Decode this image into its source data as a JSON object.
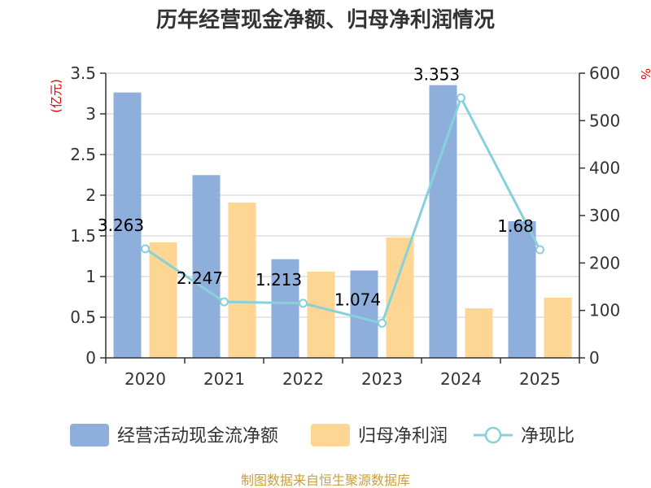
{
  "chart_data": {
    "type": "bar",
    "title": "历年经营现金净额、归母净利润情况",
    "categories": [
      "2020",
      "2021",
      "2022",
      "2023",
      "2024",
      "2025"
    ],
    "series": [
      {
        "name": "经营活动现金流净额",
        "type": "bar",
        "axis": "left",
        "color": "#8eaedc",
        "values": [
          3.263,
          2.247,
          1.213,
          1.074,
          3.353,
          1.68
        ]
      },
      {
        "name": "归母净利润",
        "type": "bar",
        "axis": "left",
        "color": "#fdd693",
        "values": [
          1.42,
          1.91,
          1.06,
          1.48,
          0.61,
          0.74
        ]
      },
      {
        "name": "净现比",
        "type": "line",
        "axis": "right",
        "color": "#86d1da",
        "values": [
          230,
          118,
          115,
          73,
          548,
          228
        ]
      }
    ],
    "data_labels": [
      "3.263",
      "2.247",
      "1.213",
      "1.074",
      "3.353",
      "1.68"
    ],
    "left_axis": {
      "unit": "(亿元)",
      "min": 0,
      "max": 3.5,
      "ticks": [
        "0",
        "0.5",
        "1",
        "1.5",
        "2",
        "2.5",
        "3",
        "3.5"
      ]
    },
    "right_axis": {
      "unit": "%",
      "min": 0,
      "max": 600,
      "ticks": [
        "0",
        "100",
        "200",
        "300",
        "400",
        "500",
        "600"
      ]
    },
    "grid": true,
    "legend_position": "bottom"
  },
  "source": "制图数据来自恒生聚源数据库"
}
